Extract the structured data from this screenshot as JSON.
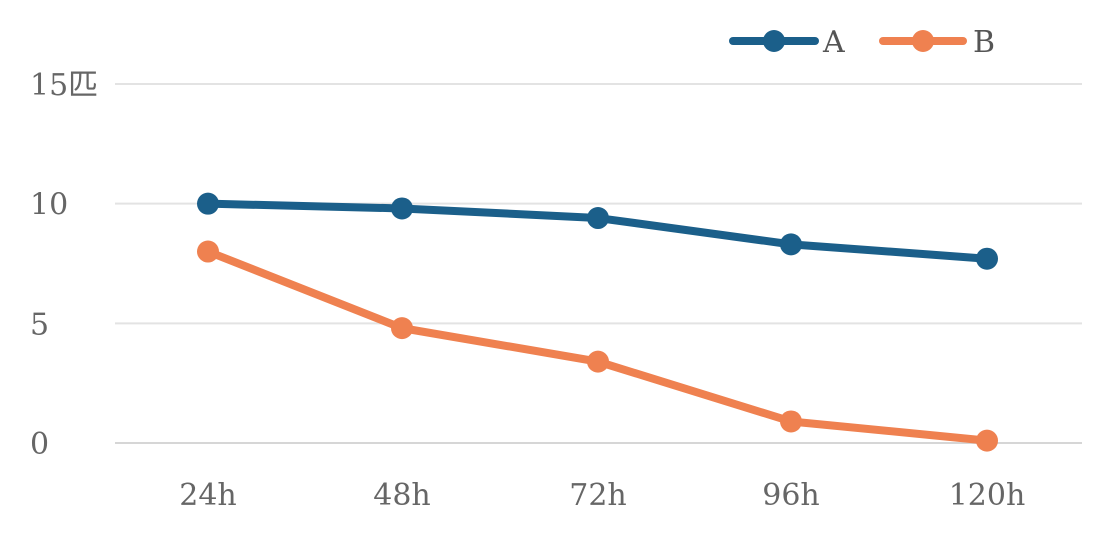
{
  "chart_data": {
    "type": "line",
    "categories": [
      "24h",
      "48h",
      "72h",
      "96h",
      "120h"
    ],
    "series": [
      {
        "name": "A",
        "values": [
          10.0,
          9.8,
          9.4,
          8.3,
          7.7
        ],
        "color": "#1b5f8a"
      },
      {
        "name": "B",
        "values": [
          8.0,
          4.8,
          3.4,
          0.9,
          0.1
        ],
        "color": "#ef8150"
      }
    ],
    "y_ticks": [
      "0",
      "5",
      "10",
      "15匹"
    ],
    "ylim": [
      0,
      15
    ],
    "grid": true,
    "legend_position": "top-right",
    "title": "",
    "xlabel": "",
    "ylabel": ""
  }
}
